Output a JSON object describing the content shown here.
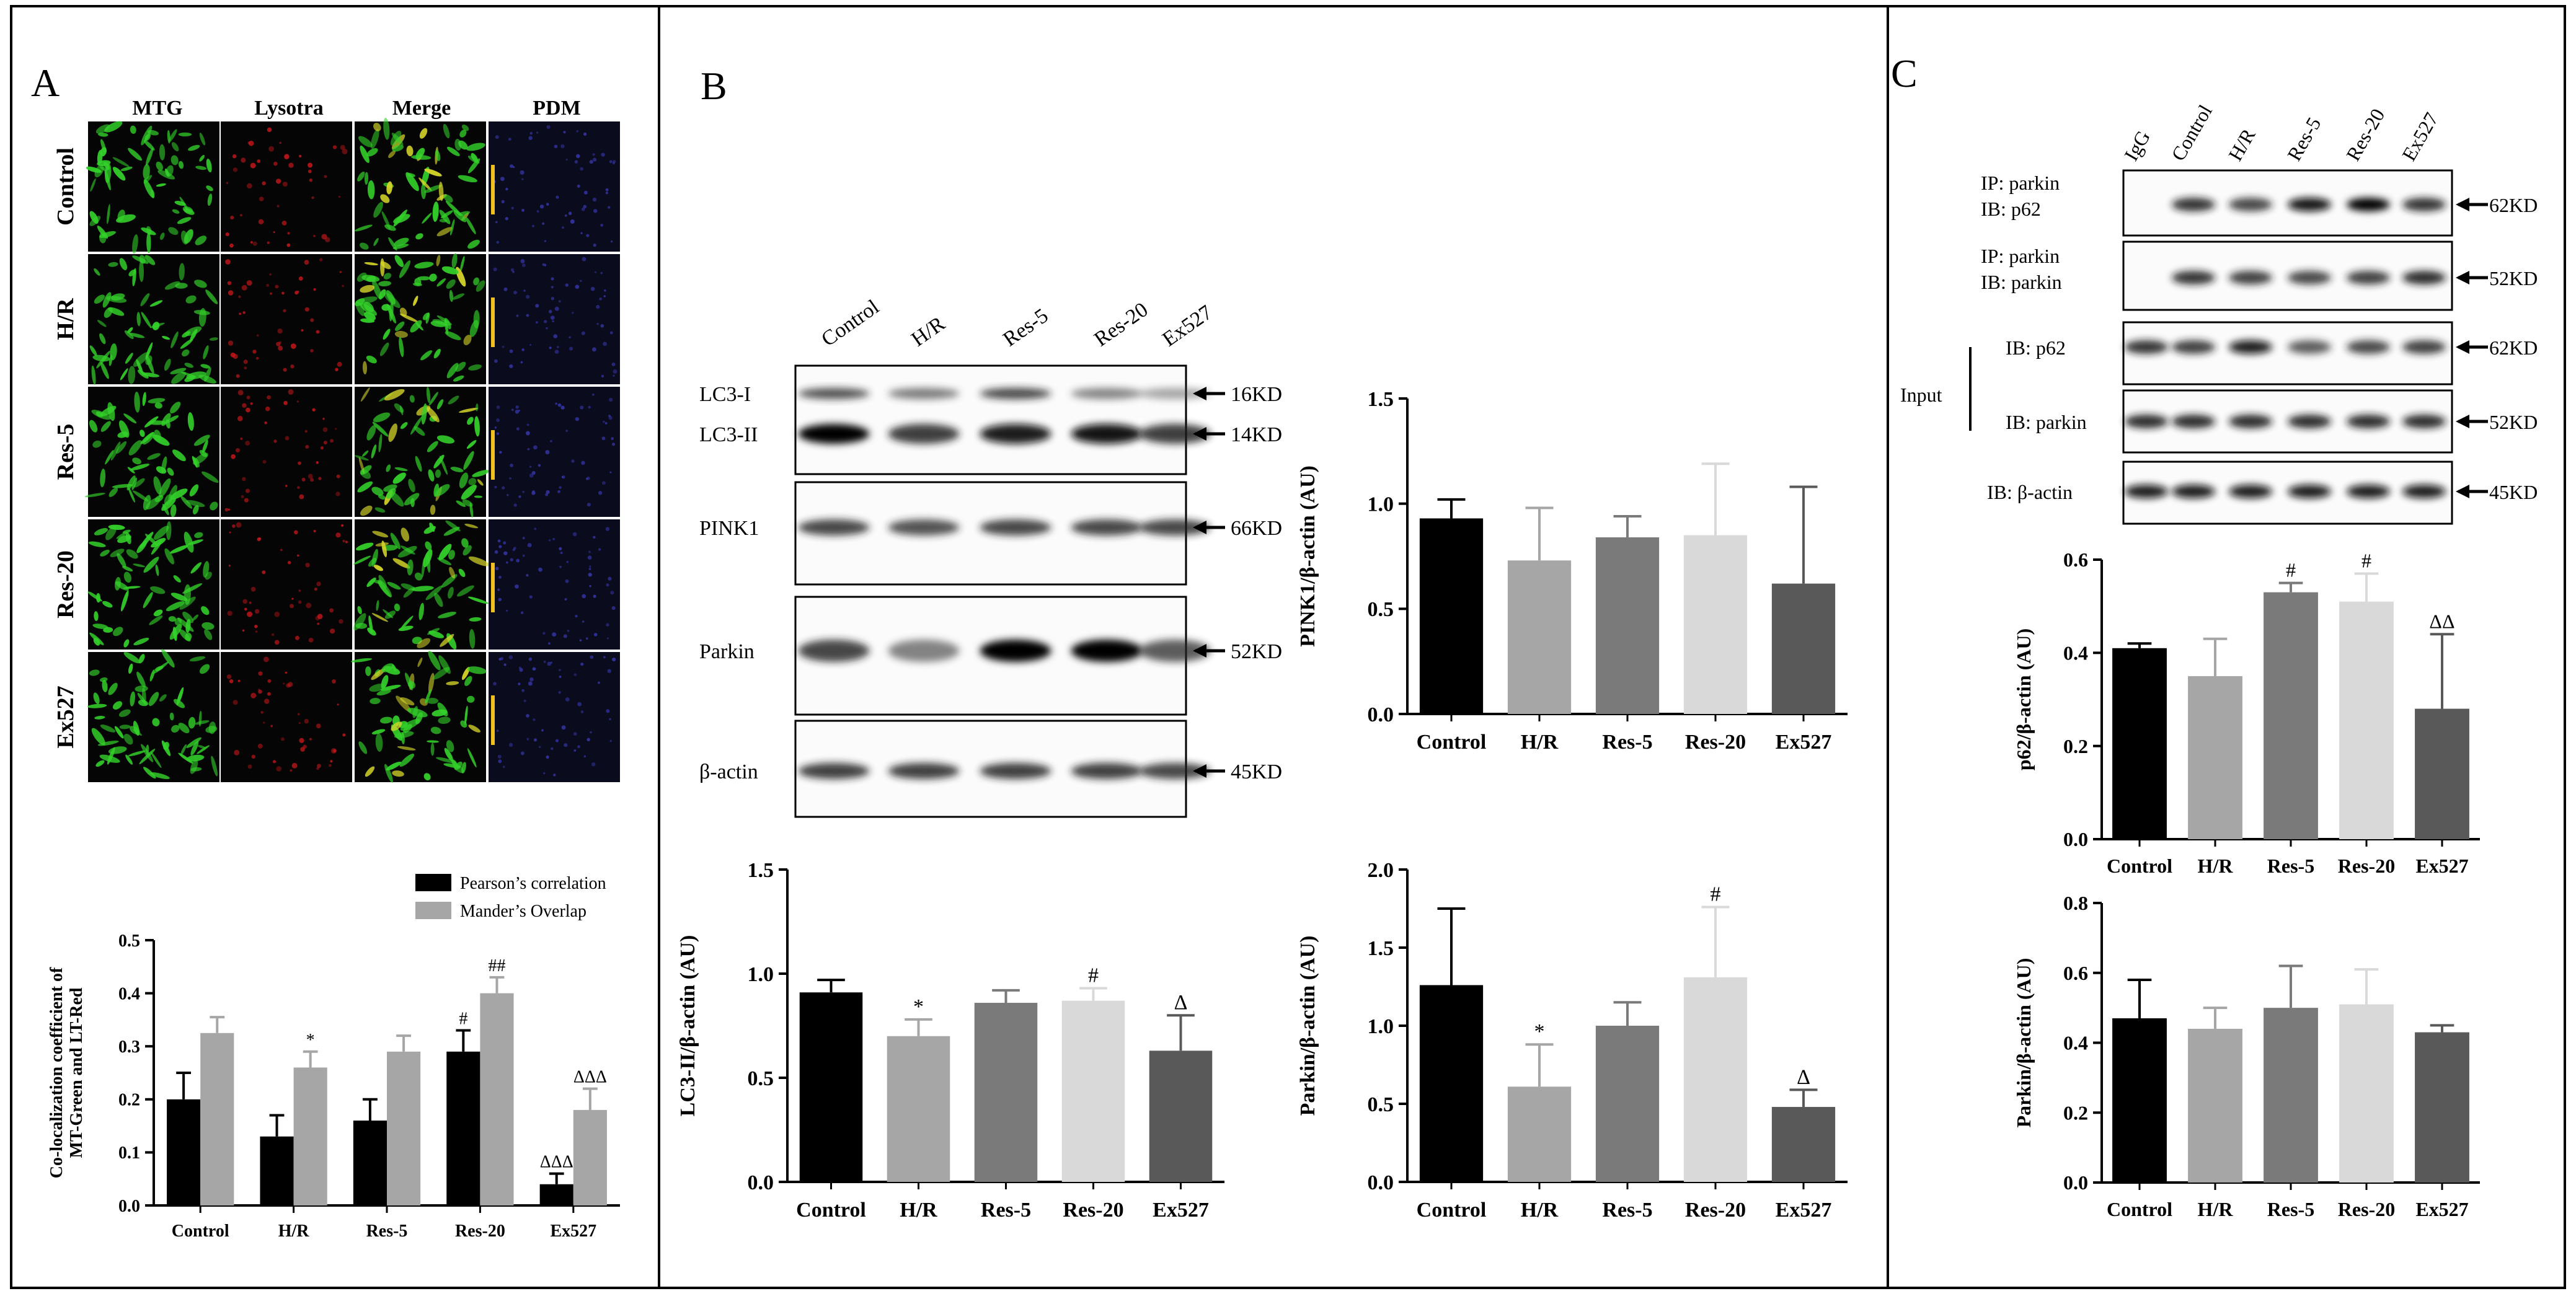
{
  "panels": {
    "a": {
      "letter": "A",
      "micro_headers": [
        "MTG",
        "Lysotra",
        "Merge",
        "PDM"
      ],
      "row_labels": [
        "Control",
        "H/R",
        "Res-5",
        "Res-20",
        "Ex527"
      ]
    },
    "b": {
      "letter": "B",
      "lanes": [
        "Control",
        "H/R",
        "Res-5",
        "Res-20",
        "Ex527"
      ],
      "blots": [
        {
          "labels": [
            "LC3-I",
            "LC3-II"
          ],
          "kd": [
            "16KD",
            "14KD"
          ]
        },
        {
          "labels": [
            "PINK1"
          ],
          "kd": [
            "66KD"
          ]
        },
        {
          "labels": [
            "Parkin"
          ],
          "kd": [
            "52KD"
          ]
        },
        {
          "labels": [
            "β-actin"
          ],
          "kd": [
            "45KD"
          ]
        }
      ]
    },
    "c": {
      "letter": "C",
      "lanes": [
        "IgG",
        "Control",
        "H/R",
        "Res-5",
        "Res-20",
        "Ex527"
      ],
      "blots": [
        {
          "labels": [
            "IP: parkin",
            "IB: p62"
          ],
          "kd": "62KD"
        },
        {
          "labels": [
            "IP: parkin",
            "IB: parkin"
          ],
          "kd": "52KD"
        },
        {
          "labels": [
            "IB: p62"
          ],
          "kd": "62KD"
        },
        {
          "labels": [
            "IB: parkin"
          ],
          "kd": "52KD"
        },
        {
          "labels": [
            "IB: β-actin"
          ],
          "kd": "45KD"
        }
      ],
      "input_label": "Input"
    }
  },
  "chart_data": [
    {
      "id": "coloc",
      "type": "bar",
      "categories": [
        "Control",
        "H/R",
        "Res-5",
        "Res-20",
        "Ex527"
      ],
      "series": [
        {
          "name": "Pearson’s correlation",
          "values": [
            0.2,
            0.13,
            0.16,
            0.29,
            0.04
          ],
          "errors": [
            0.05,
            0.04,
            0.04,
            0.04,
            0.02
          ],
          "marks": [
            "",
            "",
            "",
            "#",
            "ΔΔΔ"
          ]
        },
        {
          "name": "Mander’s Overlap",
          "values": [
            0.325,
            0.26,
            0.29,
            0.4,
            0.18
          ],
          "errors": [
            0.03,
            0.03,
            0.03,
            0.03,
            0.04
          ],
          "marks": [
            "",
            "*",
            "",
            "##",
            "ΔΔΔ"
          ]
        }
      ],
      "ylabel": "Co-localization coefficient of MT-Green and LT-Red",
      "ylim": [
        0,
        0.5
      ],
      "yticks": [
        "0.0",
        "0.1",
        "0.2",
        "0.3",
        "0.4",
        "0.5"
      ],
      "legend": "top-right",
      "colors": [
        "#000000",
        "#a6a6a6"
      ]
    },
    {
      "id": "pink1",
      "type": "bar",
      "categories": [
        "Control",
        "H/R",
        "Res-5",
        "Res-20",
        "Ex527"
      ],
      "values": [
        0.93,
        0.73,
        0.84,
        0.85,
        0.62
      ],
      "errors": [
        0.09,
        0.25,
        0.1,
        0.34,
        0.46
      ],
      "marks": [
        "",
        "",
        "",
        "",
        ""
      ],
      "ylabel": "PINK1/β-actin (AU)",
      "ylim": [
        0,
        1.5
      ],
      "yticks": [
        "0.0",
        "0.5",
        "1.0",
        "1.5"
      ],
      "colors": [
        "#000000",
        "#a6a6a6",
        "#7a7a7a",
        "#d9d9d9",
        "#595959"
      ]
    },
    {
      "id": "lc3",
      "type": "bar",
      "categories": [
        "Control",
        "H/R",
        "Res-5",
        "Res-20",
        "Ex527"
      ],
      "values": [
        0.91,
        0.7,
        0.86,
        0.87,
        0.63
      ],
      "errors": [
        0.06,
        0.08,
        0.06,
        0.06,
        0.17
      ],
      "marks": [
        "",
        "*",
        "",
        "#",
        "Δ"
      ],
      "ylabel": "LC3-II/β-actin (AU)",
      "ylim": [
        0,
        1.5
      ],
      "yticks": [
        "0.0",
        "0.5",
        "1.0",
        "1.5"
      ],
      "colors": [
        "#000000",
        "#a6a6a6",
        "#7a7a7a",
        "#d9d9d9",
        "#595959"
      ]
    },
    {
      "id": "parkin",
      "type": "bar",
      "categories": [
        "Control",
        "H/R",
        "Res-5",
        "Res-20",
        "Ex527"
      ],
      "values": [
        1.26,
        0.61,
        1.0,
        1.31,
        0.48
      ],
      "errors": [
        0.49,
        0.27,
        0.15,
        0.45,
        0.11
      ],
      "marks": [
        "",
        "*",
        "",
        "#",
        "Δ"
      ],
      "ylabel": "Parkin/β-actin (AU)",
      "ylim": [
        0,
        2.0
      ],
      "yticks": [
        "0.0",
        "0.5",
        "1.0",
        "1.5",
        "2.0"
      ],
      "colors": [
        "#000000",
        "#a6a6a6",
        "#7a7a7a",
        "#d9d9d9",
        "#595959"
      ]
    },
    {
      "id": "p62",
      "type": "bar",
      "categories": [
        "Control",
        "H/R",
        "Res-5",
        "Res-20",
        "Ex527"
      ],
      "values": [
        0.41,
        0.35,
        0.53,
        0.51,
        0.28
      ],
      "errors": [
        0.01,
        0.08,
        0.02,
        0.06,
        0.16
      ],
      "marks": [
        "",
        "",
        "#",
        "#",
        "ΔΔ"
      ],
      "ylabel": "p62/β-actin (AU)",
      "ylim": [
        0,
        0.6
      ],
      "yticks": [
        "0.0",
        "0.2",
        "0.4",
        "0.6"
      ],
      "colors": [
        "#000000",
        "#a6a6a6",
        "#7a7a7a",
        "#d9d9d9",
        "#595959"
      ]
    },
    {
      "id": "parkin_c",
      "type": "bar",
      "categories": [
        "Control",
        "H/R",
        "Res-5",
        "Res-20",
        "Ex527"
      ],
      "values": [
        0.47,
        0.44,
        0.5,
        0.51,
        0.43
      ],
      "errors": [
        0.11,
        0.06,
        0.12,
        0.1,
        0.02
      ],
      "marks": [
        "",
        "",
        "",
        "",
        ""
      ],
      "ylabel": "Parkin/β-actin (AU)",
      "ylim": [
        0,
        0.8
      ],
      "yticks": [
        "0.0",
        "0.2",
        "0.4",
        "0.6",
        "0.8"
      ],
      "colors": [
        "#000000",
        "#a6a6a6",
        "#7a7a7a",
        "#d9d9d9",
        "#595959"
      ]
    }
  ],
  "blot_intensity": {
    "b": [
      [
        [
          0.65,
          0.45,
          0.7,
          0.4,
          0.2
        ],
        [
          1.0,
          0.75,
          0.9,
          0.95,
          0.75
        ]
      ],
      [
        [
          0.7,
          0.65,
          0.7,
          0.7,
          0.7
        ]
      ],
      [
        [
          0.7,
          0.4,
          1.0,
          1.0,
          0.6
        ]
      ],
      [
        [
          0.75,
          0.75,
          0.75,
          0.75,
          0.7
        ]
      ]
    ],
    "c": [
      [
        0.0,
        0.8,
        0.7,
        0.95,
        1.0,
        0.8
      ],
      [
        0.0,
        0.8,
        0.75,
        0.7,
        0.75,
        0.85
      ],
      [
        0.8,
        0.75,
        0.9,
        0.6,
        0.7,
        0.75
      ],
      [
        0.85,
        0.85,
        0.85,
        0.85,
        0.85,
        0.85
      ],
      [
        0.9,
        0.9,
        0.9,
        0.9,
        0.9,
        0.9
      ]
    ]
  }
}
